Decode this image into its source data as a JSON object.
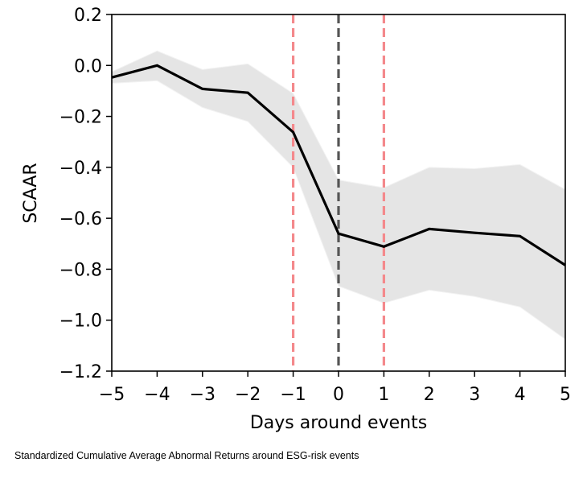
{
  "chart_data": {
    "type": "line",
    "title": "",
    "xlabel": "Days around events",
    "ylabel": "SCAAR",
    "xlim": [
      -5,
      5
    ],
    "ylim": [
      -1.2,
      0.2
    ],
    "xticks": [
      -5,
      -4,
      -3,
      -2,
      -1,
      0,
      1,
      2,
      3,
      4,
      5
    ],
    "xtick_labels": [
      "−5",
      "−4",
      "−3",
      "−2",
      "−1",
      "0",
      "1",
      "2",
      "3",
      "4",
      "5"
    ],
    "yticks": [
      0.2,
      0.0,
      -0.2,
      -0.4,
      -0.6,
      -0.8,
      -1.0,
      -1.2
    ],
    "ytick_labels": [
      "0.2",
      "0.0",
      "−0.2",
      "−0.4",
      "−0.6",
      "−0.8",
      "−1.0",
      "−1.2"
    ],
    "grid": false,
    "x": [
      -5,
      -4,
      -3,
      -2,
      -1,
      0,
      1,
      2,
      3,
      4,
      5
    ],
    "series": [
      {
        "name": "SCAAR",
        "color": "#000000",
        "values": [
          -0.047,
          0.0,
          -0.092,
          -0.107,
          -0.262,
          -0.66,
          -0.711,
          -0.642,
          -0.657,
          -0.67,
          -0.784
        ]
      }
    ],
    "confidence_band": {
      "color": "#e5e5e5",
      "upper": [
        -0.025,
        0.057,
        -0.016,
        0.006,
        -0.11,
        -0.45,
        -0.48,
        -0.4,
        -0.405,
        -0.389,
        -0.487
      ],
      "lower": [
        -0.07,
        -0.06,
        -0.165,
        -0.22,
        -0.4,
        -0.866,
        -0.933,
        -0.882,
        -0.907,
        -0.948,
        -1.075
      ]
    },
    "vertical_lines": [
      {
        "x": -1,
        "color": "#f4898c",
        "style": "dashed"
      },
      {
        "x": 0,
        "color": "#555555",
        "style": "dashed"
      },
      {
        "x": 1,
        "color": "#f4898c",
        "style": "dashed"
      }
    ]
  },
  "caption": "Standardized Cumulative Average Abnormal Returns around ESG-risk events"
}
